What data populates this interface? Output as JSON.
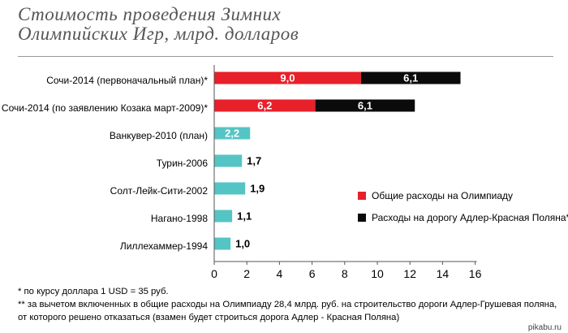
{
  "title": {
    "line1": "Стоимость проведения  Зимних",
    "line2": "Олимпийских Игр, млрд. долларов"
  },
  "chart_data": {
    "type": "bar",
    "orientation": "horizontal",
    "stacked": true,
    "categories": [
      "Сочи-2014 (первоначальный план)*",
      "Сочи-2014 (по заявлению Козака март-2009)*",
      "Ванкувер-2010 (план)",
      "Турин-2006",
      "Солт-Лейк-Сити-2002",
      "Нагано-1998",
      "Лиллехаммер-1994"
    ],
    "series": [
      {
        "name": "Общие расходы на Олимпиаду",
        "color": "#e8202a",
        "values": [
          9.0,
          6.2,
          null,
          null,
          null,
          null,
          null
        ],
        "labels": [
          "9,0",
          "6,2",
          "",
          "",
          "",
          "",
          ""
        ]
      },
      {
        "name": "Расходы на дорогу Адлер-Красная Поляна**",
        "color": "#0b0b0b",
        "values": [
          6.1,
          6.1,
          null,
          null,
          null,
          null,
          null
        ],
        "labels": [
          "6,1",
          "6,1",
          "",
          "",
          "",
          "",
          ""
        ]
      },
      {
        "color": "#55c4c4",
        "values": [
          null,
          null,
          2.2,
          1.7,
          1.9,
          1.1,
          1.0
        ],
        "labels": [
          "",
          "",
          "2,2",
          "1,7",
          "1,9",
          "1,1",
          "1,0"
        ]
      }
    ],
    "xlim": [
      0,
      16
    ],
    "xticks": [
      0,
      2,
      4,
      6,
      8,
      10,
      12,
      14,
      16
    ],
    "xtick_labels": [
      "0",
      "2",
      "4",
      "6",
      "8",
      "10",
      "12",
      "14",
      "16"
    ],
    "grid": false,
    "legend_position": "right"
  },
  "footnotes": {
    "note1": "* по курсу доллара 1 USD = 35 руб.",
    "note2": "** за вычетом включенных в общие расходы на Олимпиаду 28,4 млрд. руб. на строительство дороги Адлер-Грушевая поляна,",
    "note3": "от которого решено отказаться (взамен будет строиться дорога Адлер - Красная Поляна)"
  },
  "watermark": "pikabu.ru"
}
